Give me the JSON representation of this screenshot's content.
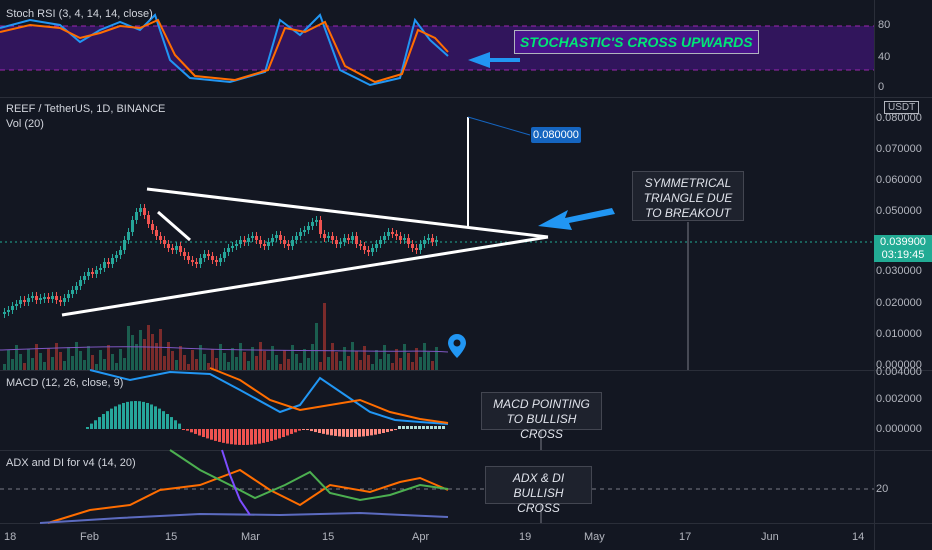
{
  "stoch": {
    "title": "Stoch RSI (3, 4, 14, 14, close)",
    "axis": [
      "80",
      "40",
      "0"
    ],
    "callout": "STOCHASTIC'S CROSS UPWARDS"
  },
  "main": {
    "symbol": "REEF / TetherUS, 1D, BINANCE",
    "vol_label": "Vol (20)",
    "currency": "USDT",
    "axis": [
      "0.080000",
      "0.070000",
      "0.060000",
      "0.050000",
      "0.040000",
      "0.030000",
      "0.020000",
      "0.010000",
      "0.000000"
    ],
    "target_price": "0.080000",
    "current_price": "0.039900",
    "countdown": "03:19:45",
    "callout": "SYMMETRICAL TRIANGLE DUE TO BREAKOUT"
  },
  "macd": {
    "title": "MACD (12, 26, close, 9)",
    "axis": [
      "0.004000",
      "0.002000",
      "0.000000"
    ],
    "callout": "MACD POINTING TO BULLISH CROSS"
  },
  "adx": {
    "title": "ADX and DI for v4 (14, 20)",
    "axis": [
      "20"
    ],
    "callout": "ADX & DI BULLISH CROSS"
  },
  "time_axis": [
    "18",
    "Feb",
    "15",
    "Mar",
    "15",
    "Apr",
    "19",
    "May",
    "17",
    "Jun",
    "14"
  ],
  "colors": {
    "bull": "#26a69a",
    "bear": "#ef5350",
    "blue_line": "#2196f3",
    "orange_line": "#ff6d00",
    "stoch_band": "#4a148c"
  }
}
